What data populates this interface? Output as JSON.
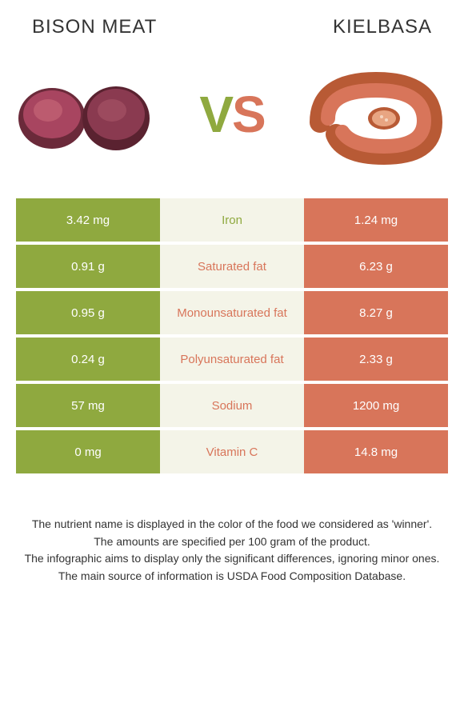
{
  "header": {
    "left_title": "Bison meat",
    "right_title": "Kielbasa"
  },
  "vs": {
    "v": "V",
    "s": "S"
  },
  "colors": {
    "left": "#8fa93f",
    "right": "#d8755a",
    "mid_bg": "#f4f4e8",
    "meat_dark": "#6b2a3a",
    "meat_light": "#a84560",
    "sausage_outer": "#c96a3f",
    "sausage_inner": "#e8a582"
  },
  "rows": [
    {
      "left": "3.42 mg",
      "label": "Iron",
      "right": "1.24 mg",
      "winner": "left"
    },
    {
      "left": "0.91 g",
      "label": "Saturated fat",
      "right": "6.23 g",
      "winner": "right"
    },
    {
      "left": "0.95 g",
      "label": "Monounsaturated fat",
      "right": "8.27 g",
      "winner": "right"
    },
    {
      "left": "0.24 g",
      "label": "Polyunsaturated fat",
      "right": "2.33 g",
      "winner": "right"
    },
    {
      "left": "57 mg",
      "label": "Sodium",
      "right": "1200 mg",
      "winner": "right"
    },
    {
      "left": "0 mg",
      "label": "Vitamin C",
      "right": "14.8 mg",
      "winner": "right"
    }
  ],
  "footer": [
    "The nutrient name is displayed in the color of the food we considered as 'winner'.",
    "The amounts are specified per 100 gram of the product.",
    "The infographic aims to display only the significant differences, ignoring minor ones.",
    "The main source of information is USDA Food Composition Database."
  ]
}
